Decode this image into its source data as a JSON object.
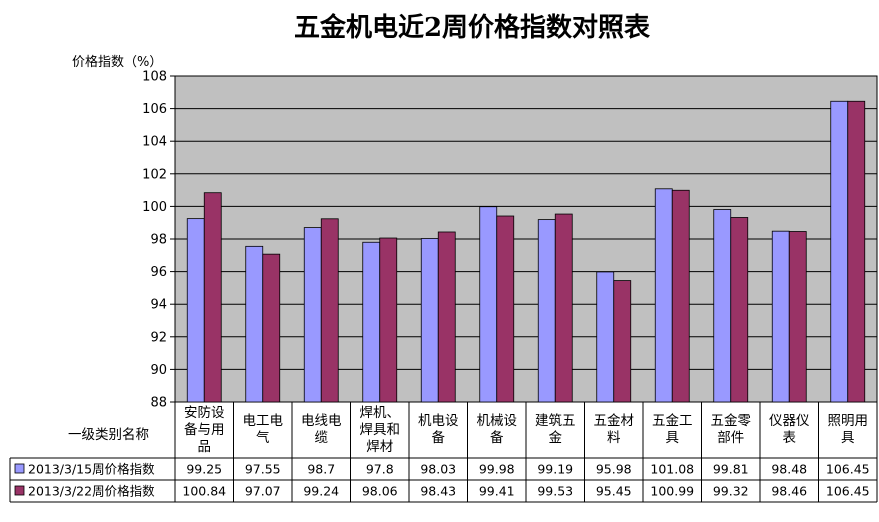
{
  "chart_data": {
    "type": "bar",
    "title": "五金机电近2周价格指数对照表",
    "ylabel": "价格指数（%）",
    "category_header": "一级类别名称",
    "ylim": [
      88,
      108
    ],
    "yticks": [
      88,
      90,
      92,
      94,
      96,
      98,
      100,
      102,
      104,
      106,
      108
    ],
    "grid": true,
    "legend": "table-below",
    "categories": [
      "安防设备与用品",
      "电工电气",
      "电线电缆",
      "焊机、焊具和焊材",
      "机电设备",
      "机械设备",
      "建筑五金",
      "五金材料",
      "五金工具",
      "五金零部件",
      "仪器仪表",
      "照明用具"
    ],
    "category_lines": [
      [
        "安防设",
        "备与用",
        "品"
      ],
      [
        "电工电",
        "气"
      ],
      [
        "电线电",
        "缆"
      ],
      [
        "焊机、",
        "焊具和",
        "焊材"
      ],
      [
        "机电设",
        "备"
      ],
      [
        "机械设",
        "备"
      ],
      [
        "建筑五",
        "金"
      ],
      [
        "五金材",
        "料"
      ],
      [
        "五金工",
        "具"
      ],
      [
        "五金零",
        "部件"
      ],
      [
        "仪器仪",
        "表"
      ],
      [
        "照明用",
        "具"
      ]
    ],
    "series": [
      {
        "name": "2013/3/15周价格指数",
        "color": "#9999ff",
        "values": [
          99.25,
          97.55,
          98.7,
          97.8,
          98.03,
          99.98,
          99.19,
          95.98,
          101.08,
          99.81,
          98.48,
          106.45
        ],
        "labels": [
          "99.25",
          "97.55",
          "98.7",
          "97.8",
          "98.03",
          "99.98",
          "99.19",
          "95.98",
          "101.08",
          "99.81",
          "98.48",
          "106.45"
        ]
      },
      {
        "name": "2013/3/22周价格指数",
        "color": "#993366",
        "values": [
          100.84,
          97.07,
          99.24,
          98.06,
          98.43,
          99.41,
          99.53,
          95.45,
          100.99,
          99.32,
          98.46,
          106.45
        ],
        "labels": [
          "100.84",
          "97.07",
          "99.24",
          "98.06",
          "98.43",
          "99.41",
          "99.53",
          "95.45",
          "100.99",
          "99.32",
          "98.46",
          "106.45"
        ]
      }
    ],
    "colors": {
      "plot_bg": "#c0c0c0",
      "bar_outline": "#000000"
    }
  }
}
